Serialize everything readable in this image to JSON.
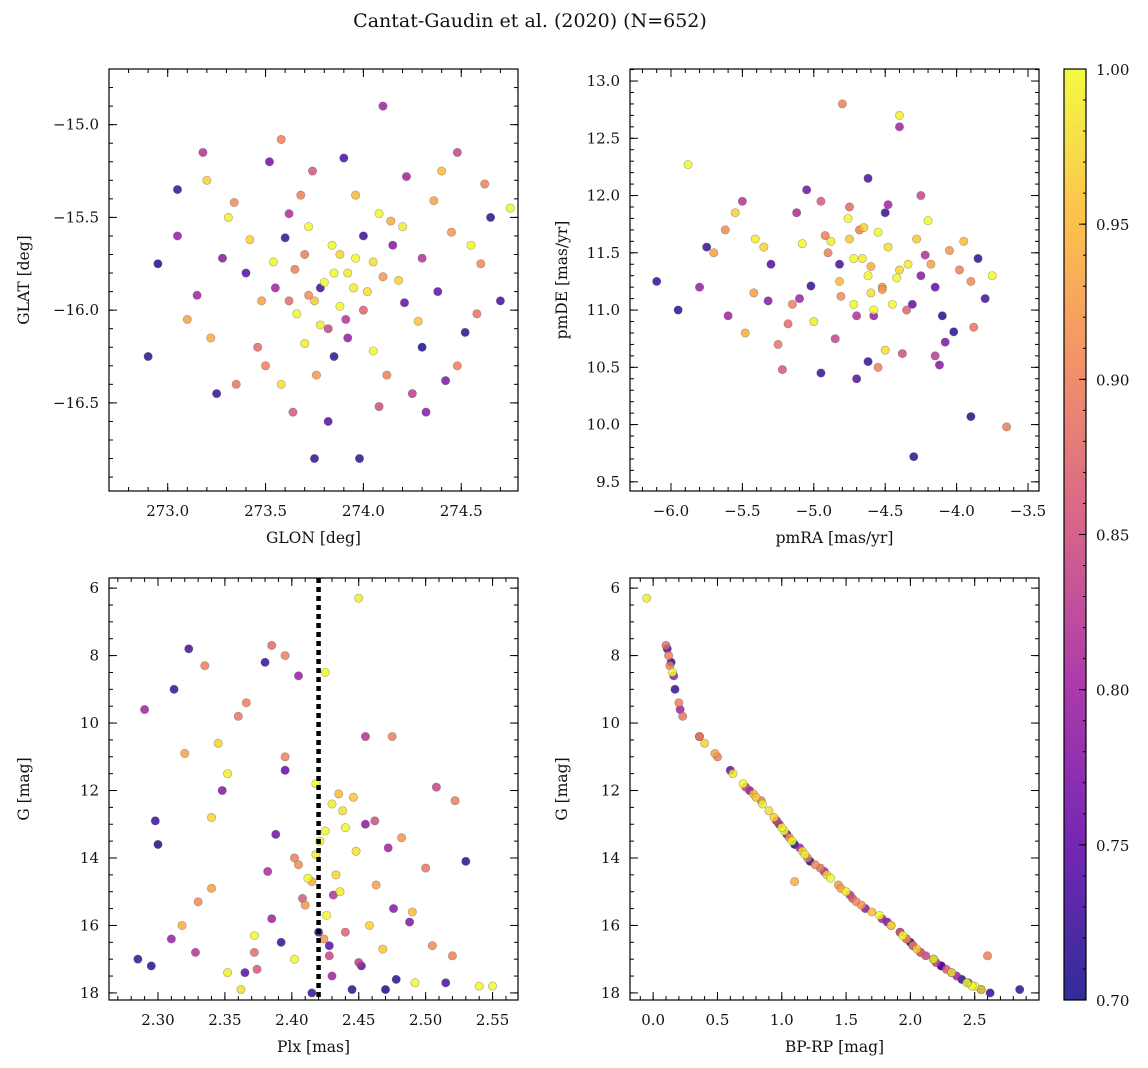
{
  "title": "Cantat-Gaudin et al. (2020) (N=652)",
  "chart_data": {
    "type": "scatter",
    "title": "Cantat-Gaudin et al. (2020) (N=652)",
    "fields": [
      "glon",
      "glat",
      "pmra",
      "pmde",
      "plx",
      "g",
      "bprp",
      "prob"
    ],
    "stars": [
      [
        273.85,
        -15.8,
        -4.62,
        11.3,
        2.421,
        13.5,
        1.08,
        1.0
      ],
      [
        273.72,
        -15.92,
        -4.81,
        11.12,
        2.405,
        14.2,
        1.26,
        0.91
      ],
      [
        274.05,
        -15.74,
        -4.48,
        11.55,
        2.438,
        12.6,
        0.9,
        0.98
      ],
      [
        273.91,
        -16.05,
        -4.7,
        10.95,
        2.431,
        15.1,
        1.53,
        0.82
      ],
      [
        273.6,
        -15.61,
        -5.02,
        11.21,
        2.392,
        16.5,
        2.0,
        0.72
      ],
      [
        274.21,
        -15.96,
        -4.31,
        11.05,
        2.452,
        17.2,
        2.24,
        0.75
      ],
      [
        273.46,
        -16.2,
        -5.18,
        10.88,
        2.372,
        16.8,
        2.08,
        0.88
      ],
      [
        274.36,
        -15.41,
        -4.18,
        11.4,
        2.463,
        14.8,
        1.44,
        0.93
      ],
      [
        273.31,
        -15.5,
        -5.41,
        11.62,
        2.352,
        11.5,
        0.62,
        0.99
      ],
      [
        274.52,
        -16.12,
        -4.02,
        10.81,
        2.478,
        17.6,
        2.4,
        0.71
      ],
      [
        273.8,
        -15.85,
        -4.55,
        11.68,
        2.425,
        13.2,
        1.02,
        1.0
      ],
      [
        273.95,
        -15.88,
        -4.66,
        11.45,
        2.418,
        13.9,
        1.18,
        0.99
      ],
      [
        273.88,
        -15.7,
        -4.4,
        11.35,
        2.433,
        14.5,
        1.35,
        0.97
      ],
      [
        273.75,
        -15.95,
        -4.75,
        11.62,
        2.446,
        12.2,
        0.8,
        0.96
      ],
      [
        274.1,
        -15.82,
        -4.52,
        11.2,
        2.41,
        15.4,
        1.62,
        0.92
      ],
      [
        273.65,
        -15.78,
        -4.9,
        11.5,
        2.402,
        14.0,
        1.2,
        0.9
      ],
      [
        274.0,
        -16.0,
        -4.35,
        11.0,
        2.44,
        16.2,
        1.92,
        0.87
      ],
      [
        273.82,
        -16.1,
        -4.85,
        10.75,
        2.428,
        16.9,
        2.12,
        0.84
      ],
      [
        273.55,
        -15.88,
        -5.1,
        11.1,
        2.385,
        15.8,
        1.78,
        0.8
      ],
      [
        274.15,
        -15.65,
        -4.25,
        11.3,
        2.455,
        13.0,
        0.98,
        0.78
      ],
      [
        273.4,
        -15.8,
        -5.3,
        11.4,
        2.365,
        17.4,
        2.32,
        0.74
      ],
      [
        274.3,
        -16.2,
        -4.1,
        10.95,
        2.47,
        17.9,
        2.55,
        0.7
      ],
      [
        273.2,
        -15.3,
        -5.55,
        11.85,
        2.34,
        12.8,
        0.94,
        0.97
      ],
      [
        274.4,
        -15.25,
        -3.95,
        11.6,
        2.49,
        15.6,
        1.7,
        0.95
      ],
      [
        273.1,
        -16.05,
        -5.7,
        11.5,
        2.32,
        10.9,
        0.48,
        0.93
      ],
      [
        274.6,
        -15.75,
        -3.9,
        11.25,
        2.505,
        16.6,
        2.02,
        0.91
      ],
      [
        273.35,
        -16.4,
        -5.25,
        10.7,
        2.36,
        9.8,
        0.23,
        0.89
      ],
      [
        274.25,
        -16.45,
        -4.15,
        10.6,
        2.45,
        17.1,
        2.2,
        0.83
      ],
      [
        273.05,
        -15.6,
        -5.8,
        11.2,
        2.31,
        16.4,
        1.97,
        0.79
      ],
      [
        274.7,
        -15.95,
        -3.8,
        11.1,
        2.515,
        17.7,
        2.45,
        0.73
      ],
      [
        272.9,
        -16.25,
        -5.95,
        11.0,
        2.295,
        17.2,
        2.24,
        0.71
      ],
      [
        274.75,
        -15.45,
        -3.75,
        11.3,
        2.54,
        17.8,
        2.5,
        1.0
      ],
      [
        273.75,
        -16.8,
        -4.95,
        10.45,
        2.415,
        18.0,
        2.62,
        0.72
      ],
      [
        274.1,
        -14.9,
        -4.4,
        12.6,
        2.43,
        17.5,
        2.36,
        0.8
      ],
      [
        273.58,
        -15.08,
        -4.8,
        12.8,
        2.395,
        11.0,
        0.5,
        0.9
      ],
      [
        273.98,
        -16.8,
        -4.3,
        9.72,
        2.445,
        17.9,
        2.85,
        0.71
      ],
      [
        274.48,
        -16.3,
        -3.65,
        9.98,
        2.52,
        16.9,
        2.6,
        0.9
      ],
      [
        272.95,
        -15.75,
        -3.9,
        10.07,
        2.3,
        13.6,
        1.1,
        0.7
      ],
      [
        273.25,
        -16.45,
        -6.1,
        11.25,
        2.285,
        17.0,
        2.18,
        0.72
      ],
      [
        274.55,
        -15.65,
        -5.88,
        12.27,
        2.55,
        17.8,
        2.48,
        1.0
      ],
      [
        274.2,
        -15.55,
        -4.4,
        12.7,
        2.45,
        6.3,
        -0.05,
        0.99
      ],
      [
        273.62,
        -15.95,
        -4.75,
        11.9,
        2.385,
        7.7,
        0.1,
        0.88
      ],
      [
        273.7,
        -15.7,
        -4.68,
        11.7,
        2.395,
        8.0,
        0.12,
        0.9
      ],
      [
        274.0,
        -15.6,
        -4.5,
        11.85,
        2.38,
        8.2,
        0.14,
        0.72
      ],
      [
        273.78,
        -15.88,
        -4.82,
        11.4,
        2.323,
        7.8,
        0.11,
        0.73
      ],
      [
        273.92,
        -16.15,
        -4.58,
        10.95,
        2.405,
        8.6,
        0.16,
        0.79
      ],
      [
        273.5,
        -16.3,
        -5.15,
        11.05,
        2.335,
        8.3,
        0.13,
        0.9
      ],
      [
        274.08,
        -15.48,
        -4.45,
        11.05,
        2.425,
        8.5,
        0.15,
        1.0
      ],
      [
        273.68,
        -15.38,
        -4.92,
        11.65,
        2.366,
        9.4,
        0.2,
        0.9
      ],
      [
        273.85,
        -16.25,
        -4.62,
        10.55,
        2.312,
        9.0,
        0.17,
        0.72
      ],
      [
        274.3,
        -15.72,
        -4.22,
        11.48,
        2.455,
        10.4,
        0.36,
        0.82
      ],
      [
        273.42,
        -15.62,
        -5.35,
        11.55,
        2.345,
        10.6,
        0.4,
        0.97
      ],
      [
        274.12,
        -16.35,
        -4.55,
        10.5,
        2.475,
        10.4,
        0.36,
        0.9
      ],
      [
        273.15,
        -15.92,
        -5.6,
        10.95,
        2.29,
        9.6,
        0.21,
        0.8
      ],
      [
        274.38,
        -15.9,
        -4.15,
        11.2,
        2.395,
        11.4,
        0.6,
        0.75
      ],
      [
        273.72,
        -15.55,
        -4.72,
        11.45,
        2.418,
        11.8,
        0.7,
        1.0
      ],
      [
        273.92,
        -15.8,
        -4.88,
        11.6,
        2.43,
        12.4,
        0.85,
        0.99
      ],
      [
        273.66,
        -16.02,
        -4.42,
        11.28,
        2.44,
        13.1,
        1.0,
        1.0
      ],
      [
        274.02,
        -15.9,
        -4.6,
        11.15,
        2.448,
        13.8,
        1.16,
        0.98
      ],
      [
        273.84,
        -15.65,
        -4.76,
        11.8,
        2.412,
        14.6,
        1.38,
        1.0
      ],
      [
        273.78,
        -16.08,
        -4.34,
        11.4,
        2.436,
        15.0,
        1.5,
        0.99
      ],
      [
        273.96,
        -15.72,
        -4.58,
        11.0,
        2.426,
        15.7,
        1.76,
        1.0
      ],
      [
        274.18,
        -15.84,
        -4.65,
        11.72,
        2.458,
        16.0,
        1.85,
        0.97
      ],
      [
        273.54,
        -15.74,
        -5.08,
        11.58,
        2.372,
        16.3,
        1.94,
        1.0
      ],
      [
        274.28,
        -16.06,
        -4.28,
        11.62,
        2.468,
        16.7,
        2.05,
        0.96
      ],
      [
        273.88,
        -15.98,
        -4.2,
        11.78,
        2.402,
        17.0,
        2.18,
        1.0
      ],
      [
        273.7,
        -16.18,
        -5.0,
        10.9,
        2.352,
        17.4,
        2.32,
        0.99
      ],
      [
        274.05,
        -16.22,
        -4.72,
        11.05,
        2.492,
        17.7,
        2.44,
        1.0
      ],
      [
        273.58,
        -16.4,
        -4.5,
        10.65,
        2.362,
        17.9,
        2.55,
        0.98
      ],
      [
        273.48,
        -15.95,
        -5.42,
        11.15,
        2.34,
        14.9,
        1.46,
        0.93
      ],
      [
        274.45,
        -15.58,
        -4.05,
        11.52,
        2.482,
        13.4,
        1.06,
        0.92
      ],
      [
        273.34,
        -15.42,
        -5.62,
        11.7,
        2.33,
        15.3,
        1.58,
        0.91
      ],
      [
        274.58,
        -16.02,
        -3.88,
        10.85,
        2.5,
        14.3,
        1.3,
        0.89
      ],
      [
        273.22,
        -16.15,
        -5.48,
        10.8,
        2.318,
        16.0,
        1.85,
        0.94
      ],
      [
        274.62,
        -15.32,
        -3.98,
        11.35,
        2.522,
        12.3,
        0.84,
        0.9
      ],
      [
        273.74,
        -15.25,
        -4.95,
        11.95,
        2.408,
        15.2,
        1.55,
        0.86
      ],
      [
        274.08,
        -16.52,
        -4.38,
        10.62,
        2.462,
        12.9,
        0.96,
        0.85
      ],
      [
        273.62,
        -15.48,
        -5.12,
        11.85,
        2.382,
        14.4,
        1.33,
        0.81
      ],
      [
        274.22,
        -15.28,
        -4.48,
        11.92,
        2.472,
        13.7,
        1.14,
        0.8
      ],
      [
        273.28,
        -15.72,
        -5.32,
        11.08,
        2.348,
        12.0,
        0.75,
        0.78
      ],
      [
        274.42,
        -16.38,
        -4.08,
        10.72,
        2.488,
        15.9,
        1.82,
        0.77
      ],
      [
        273.05,
        -15.35,
        -5.75,
        11.55,
        2.298,
        12.9,
        0.96,
        0.72
      ],
      [
        274.65,
        -15.5,
        -3.85,
        11.45,
        2.53,
        14.1,
        1.22,
        0.71
      ],
      [
        273.9,
        -15.18,
        -4.62,
        12.15,
        2.42,
        16.2,
        1.92,
        0.73
      ],
      [
        273.82,
        -16.6,
        -4.7,
        10.4,
        2.428,
        16.6,
        2.02,
        0.74
      ],
      [
        273.52,
        -15.2,
        -5.05,
        12.05,
        2.388,
        13.3,
        1.04,
        0.76
      ],
      [
        274.32,
        -16.55,
        -4.12,
        10.52,
        2.476,
        15.5,
        1.65,
        0.78
      ],
      [
        273.18,
        -15.15,
        -5.5,
        11.95,
        2.328,
        16.8,
        2.08,
        0.82
      ],
      [
        274.48,
        -15.15,
        -4.25,
        12.0,
        2.508,
        11.9,
        0.72,
        0.84
      ],
      [
        273.64,
        -16.55,
        -5.22,
        10.48,
        2.374,
        17.3,
        2.28,
        0.86
      ],
      [
        273.96,
        -15.38,
        -4.82,
        11.25,
        2.435,
        12.1,
        0.78,
        0.95
      ],
      [
        274.14,
        -15.52,
        -4.6,
        11.38,
        2.415,
        14.7,
        1.1,
        0.94
      ],
      [
        273.76,
        -16.35,
        -4.52,
        11.18,
        2.424,
        16.4,
        1.97,
        0.92
      ]
    ],
    "panels": [
      {
        "id": "glon-glat",
        "x": "glon",
        "y": "glat",
        "xlabel": "GLON [deg]",
        "ylabel": "GLAT [deg]",
        "xlim": [
          272.7,
          274.79
        ],
        "ylim": [
          -16.975,
          -14.7
        ],
        "y_inverted": false,
        "xticks": [
          273.0,
          273.5,
          274.0,
          274.5
        ],
        "xticklabels": [
          "273.0",
          "273.5",
          "274.0",
          "274.5"
        ],
        "xminor": 0.1,
        "yticks": [
          -15.0,
          -15.5,
          -16.0,
          -16.5
        ],
        "yticklabels": [
          "−15.0",
          "−15.5",
          "−16.0",
          "−16.5"
        ],
        "yminor": 0.1
      },
      {
        "id": "pm",
        "x": "pmra",
        "y": "pmde",
        "xlabel": "pmRA [mas/yr]",
        "ylabel": "pmDE [mas/yr]",
        "xlim": [
          -6.287,
          -3.423
        ],
        "ylim": [
          9.42,
          13.105
        ],
        "y_inverted": false,
        "xticks": [
          -6.0,
          -5.5,
          -5.0,
          -4.5,
          -4.0,
          -3.5
        ],
        "xticklabels": [
          "−6.0",
          "−5.5",
          "−5.0",
          "−4.5",
          "−4.0",
          "−3.5"
        ],
        "xminor": 0.1,
        "yticks": [
          9.5,
          10.0,
          10.5,
          11.0,
          11.5,
          12.0,
          12.5,
          13.0
        ],
        "yticklabels": [
          "9.5",
          "10.0",
          "10.5",
          "11.0",
          "11.5",
          "12.0",
          "12.5",
          "13.0"
        ],
        "yminor": 0.1
      },
      {
        "id": "plx-g",
        "x": "plx",
        "y": "g",
        "xlabel": "Plx [mas]",
        "ylabel": "G [mag]",
        "xlim": [
          2.2634,
          2.569
        ],
        "ylim": [
          5.7,
          18.21
        ],
        "y_inverted": true,
        "vline": 2.42,
        "xticks": [
          2.3,
          2.35,
          2.4,
          2.45,
          2.5,
          2.55
        ],
        "xticklabels": [
          "2.30",
          "2.35",
          "2.40",
          "2.45",
          "2.50",
          "2.55"
        ],
        "xminor": 0.01,
        "yticks": [
          6,
          8,
          10,
          12,
          14,
          16,
          18
        ],
        "yticklabels": [
          "6",
          "8",
          "10",
          "12",
          "14",
          "16",
          "18"
        ],
        "yminor": 0.5
      },
      {
        "id": "cmd",
        "x": "bprp",
        "y": "g",
        "xlabel": "BP-RP [mag]",
        "ylabel": "G [mag]",
        "xlim": [
          -0.18,
          3.0
        ],
        "ylim": [
          5.7,
          18.21
        ],
        "y_inverted": true,
        "xticks": [
          0.0,
          0.5,
          1.0,
          1.5,
          2.0,
          2.5
        ],
        "xticklabels": [
          "0.0",
          "0.5",
          "1.0",
          "1.5",
          "2.0",
          "2.5"
        ],
        "xminor": 0.1,
        "yticks": [
          6,
          8,
          10,
          12,
          14,
          16,
          18
        ],
        "yticklabels": [
          "6",
          "8",
          "10",
          "12",
          "14",
          "16",
          "18"
        ],
        "yminor": 0.5
      }
    ],
    "colorbar": {
      "range": [
        0.7,
        1.0
      ],
      "colormap": "plasma",
      "ticks": [
        0.7,
        0.75,
        0.8,
        0.85,
        0.9,
        0.95,
        1.0
      ],
      "ticklabels": [
        "0.70",
        "0.75",
        "0.80",
        "0.85",
        "0.90",
        "0.95",
        "1.00"
      ],
      "minor": 0.01
    },
    "colormap_stops": [
      "#0d0887",
      "#5c01a6",
      "#9c179e",
      "#cc4778",
      "#ed7953",
      "#fdb42f",
      "#f0f921"
    ]
  }
}
